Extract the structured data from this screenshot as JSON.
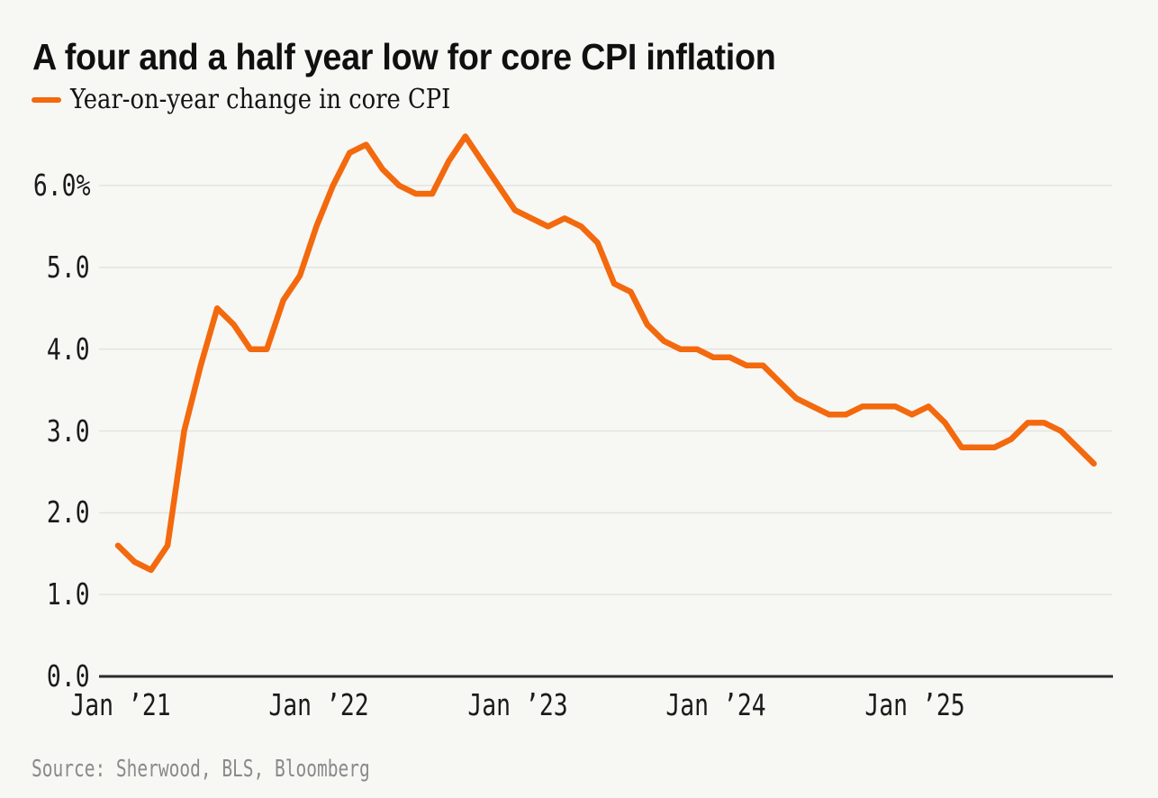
{
  "header": {
    "title": "A four and a half year low for core CPI inflation"
  },
  "legend": {
    "label": "Year-on-year change in core CPI",
    "color": "#f3690d"
  },
  "chart_data": {
    "type": "line",
    "title": "A four and a half year low for core CPI inflation",
    "xlabel": "",
    "ylabel": "Year-on-year change in core CPI (%)",
    "unit": "%",
    "ylim": [
      0,
      6.8
    ],
    "grid": "horizontal",
    "legend_position": "top-left",
    "x": [
      "Jan 2021",
      "Feb 2021",
      "Mar 2021",
      "Apr 2021",
      "May 2021",
      "Jun 2021",
      "Jul 2021",
      "Aug 2021",
      "Sep 2021",
      "Oct 2021",
      "Nov 2021",
      "Dec 2021",
      "Jan 2022",
      "Feb 2022",
      "Mar 2022",
      "Apr 2022",
      "May 2022",
      "Jun 2022",
      "Jul 2022",
      "Aug 2022",
      "Sep 2022",
      "Oct 2022",
      "Nov 2022",
      "Dec 2022",
      "Jan 2023",
      "Feb 2023",
      "Mar 2023",
      "Apr 2023",
      "May 2023",
      "Jun 2023",
      "Jul 2023",
      "Aug 2023",
      "Sep 2023",
      "Oct 2023",
      "Nov 2023",
      "Dec 2023",
      "Jan 2024",
      "Feb 2024",
      "Mar 2024",
      "Apr 2024",
      "May 2024",
      "Jun 2024",
      "Jul 2024",
      "Aug 2024",
      "Sep 2024",
      "Oct 2024",
      "Nov 2024",
      "Dec 2024",
      "Jan 2025",
      "Feb 2025",
      "Mar 2025",
      "Apr 2025",
      "May 2025",
      "Jun 2025",
      "Jul 2025",
      "Aug 2025",
      "Sep 2025",
      "Oct 2025",
      "Nov 2025",
      "Dec 2025"
    ],
    "series": [
      {
        "name": "Year-on-year change in core CPI",
        "color": "#f3690d",
        "values": [
          1.6,
          1.4,
          1.3,
          1.6,
          3.0,
          3.8,
          4.5,
          4.3,
          4.0,
          4.0,
          4.6,
          4.9,
          5.5,
          6.0,
          6.4,
          6.5,
          6.2,
          6.0,
          5.9,
          5.9,
          6.3,
          6.6,
          6.3,
          6.0,
          5.7,
          5.6,
          5.5,
          5.6,
          5.5,
          5.3,
          4.8,
          4.7,
          4.3,
          4.1,
          4.0,
          4.0,
          3.9,
          3.9,
          3.8,
          3.8,
          3.6,
          3.4,
          3.3,
          3.2,
          3.2,
          3.3,
          3.3,
          3.3,
          3.2,
          3.3,
          3.1,
          2.8,
          2.8,
          2.8,
          2.9,
          3.1,
          3.1,
          3.0,
          2.8,
          2.6
        ]
      }
    ],
    "y_ticks": [
      {
        "value": 0,
        "label": "0.0"
      },
      {
        "value": 1,
        "label": "1.0"
      },
      {
        "value": 2,
        "label": "2.0"
      },
      {
        "value": 3,
        "label": "3.0"
      },
      {
        "value": 4,
        "label": "4.0"
      },
      {
        "value": 5,
        "label": "5.0"
      },
      {
        "value": 6,
        "label": "6.0%"
      }
    ],
    "x_ticks": [
      {
        "index": 0,
        "label": "Jan ’21"
      },
      {
        "index": 12,
        "label": "Jan ’22"
      },
      {
        "index": 24,
        "label": "Jan ’23"
      },
      {
        "index": 36,
        "label": "Jan ’24"
      },
      {
        "index": 48,
        "label": "Jan ’25"
      }
    ]
  },
  "source": {
    "text": "Source: Sherwood, BLS, Bloomberg"
  },
  "colors": {
    "background": "#f7f7f4",
    "gridline": "#e4e3df",
    "axis": "#2b2b2b",
    "tick_text": "#1b1b1b",
    "muted_text": "#8a8a8a",
    "title_text": "#101010",
    "line": "#f3690d"
  }
}
